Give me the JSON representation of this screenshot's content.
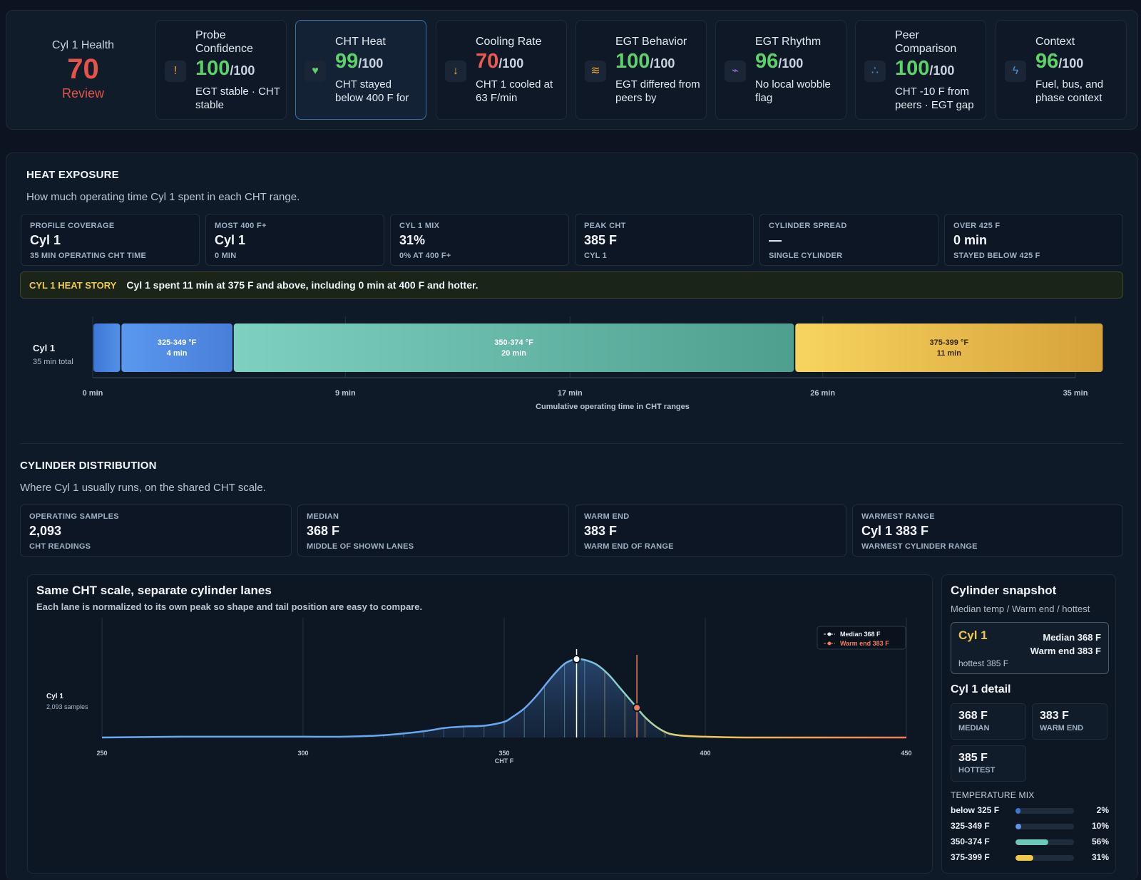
{
  "health": {
    "label": "Cyl 1 Health",
    "score": "70",
    "status": "Review"
  },
  "cards": [
    {
      "title": "Probe Confidence",
      "score": "100",
      "denom": "/100",
      "desc": "EGT stable · CHT stable",
      "icon": "!",
      "icon_name": "warning-icon",
      "icon_color": "#f0a637",
      "score_color": "good"
    },
    {
      "title": "CHT Heat",
      "score": "99",
      "denom": "/100",
      "desc": "CHT stayed below 400 F for",
      "icon": "♥",
      "icon_name": "heart-icon",
      "icon_color": "#5bd26a",
      "score_color": "good"
    },
    {
      "title": "Cooling Rate",
      "score": "70",
      "denom": "/100",
      "desc": "CHT 1 cooled at 63 F/min",
      "icon": "↓",
      "icon_name": "cooling-arrow-icon",
      "icon_color": "#f0a637",
      "score_color": "bad"
    },
    {
      "title": "EGT Behavior",
      "score": "100",
      "denom": "/100",
      "desc": "EGT differed from peers by",
      "icon": "≋",
      "icon_name": "egt-wave-icon",
      "icon_color": "#f0a637",
      "score_color": "good"
    },
    {
      "title": "EGT Rhythm",
      "score": "96",
      "denom": "/100",
      "desc": "No local wobble flag",
      "icon": "⌁",
      "icon_name": "rhythm-icon",
      "icon_color": "#a46ee6",
      "score_color": "good"
    },
    {
      "title": "Peer Comparison",
      "score": "100",
      "denom": "/100",
      "desc": "CHT -10 F from peers · EGT gap",
      "icon": "∴",
      "icon_name": "peer-dots-icon",
      "icon_color": "#4d8fd9",
      "score_color": "good"
    },
    {
      "title": "Context",
      "score": "96",
      "denom": "/100",
      "desc": "Fuel, bus, and phase context",
      "icon": "ϟ",
      "icon_name": "bolt-icon",
      "icon_color": "#4d8fd9",
      "score_color": "good"
    }
  ],
  "heat": {
    "title": "HEAT EXPOSURE",
    "subtitle": "How much operating time Cyl 1 spent in each CHT range.",
    "stats": [
      {
        "k": "PROFILE COVERAGE",
        "v": "Cyl 1",
        "f": "35 MIN OPERATING CHT TIME"
      },
      {
        "k": "MOST 400 F+",
        "v": "Cyl 1",
        "f": "0 MIN"
      },
      {
        "k": "CYL 1 MIX",
        "v": "31%",
        "f": "0% AT 400 F+"
      },
      {
        "k": "PEAK CHT",
        "v": "385 F",
        "f": "CYL 1"
      },
      {
        "k": "CYLINDER SPREAD",
        "v": "—",
        "f": "SINGLE CYLINDER"
      },
      {
        "k": "OVER 425 F",
        "v": "0 min",
        "f": "STAYED BELOW 425 F"
      }
    ],
    "story_tag": "CYL 1 HEAT STORY",
    "story_text": "Cyl 1 spent 11 min at 375 F and above, including 0 min at 400 F and hotter.",
    "bar": {
      "row_label": "Cyl 1",
      "row_sub": "35 min total",
      "total_min": 35,
      "segments": [
        {
          "name": "below 325",
          "minutes": 1,
          "label": "",
          "sublabel": ""
        },
        {
          "name": "325-349",
          "minutes": 4,
          "label": "325-349 °F",
          "sublabel": "4 min"
        },
        {
          "name": "350-374",
          "minutes": 20,
          "label": "350-374 °F",
          "sublabel": "20 min"
        },
        {
          "name": "375-399",
          "minutes": 11,
          "label": "375-399 °F",
          "sublabel": "11 min"
        }
      ],
      "ticks": [
        "0 min",
        "9 min",
        "17 min",
        "26 min",
        "35 min"
      ],
      "xlabel": "Cumulative operating time in CHT ranges"
    }
  },
  "dist": {
    "title": "CYLINDER DISTRIBUTION",
    "subtitle": "Where Cyl 1 usually runs, on the shared CHT scale.",
    "stats": [
      {
        "k": "OPERATING SAMPLES",
        "v": "2,093",
        "f": "CHT READINGS"
      },
      {
        "k": "MEDIAN",
        "v": "368 F",
        "f": "MIDDLE OF SHOWN LANES"
      },
      {
        "k": "WARM END",
        "v": "383 F",
        "f": "WARM END OF RANGE"
      },
      {
        "k": "WARMEST RANGE",
        "v": "Cyl 1 383 F",
        "f": "WARMEST CYLINDER RANGE"
      }
    ]
  },
  "chart": {
    "title": "Same CHT scale, separate cylinder lanes",
    "subtitle": "Each lane is normalized to its own peak so shape and tail position are easy to compare.",
    "lane_label": "Cyl 1",
    "lane_sub": "2,093 samples",
    "legend_median": "Median 368 F",
    "legend_warm": "Warm end 383 F",
    "x_ticks": [
      "250",
      "300",
      "350",
      "400",
      "450"
    ],
    "xlabel": "CHT F"
  },
  "chart_data": {
    "type": "area",
    "title": "Same CHT scale, separate cylinder lanes",
    "xlabel": "CHT F",
    "ylabel": "",
    "xlim": [
      250,
      450
    ],
    "ylim": [
      0,
      1
    ],
    "grid": true,
    "legend": "top-right",
    "series": [
      {
        "name": "Cyl 1",
        "x": [
          250,
          270,
          290,
          300,
          310,
          320,
          330,
          335,
          340,
          345,
          350,
          352,
          355,
          358,
          361,
          363,
          365,
          367,
          368,
          370,
          373,
          376,
          379,
          382,
          385,
          388,
          391,
          395,
          400,
          410,
          430,
          450
        ],
        "y": [
          0,
          0.01,
          0.01,
          0.01,
          0.01,
          0.03,
          0.08,
          0.12,
          0.14,
          0.15,
          0.2,
          0.26,
          0.37,
          0.53,
          0.72,
          0.84,
          0.94,
          0.99,
          1.0,
          0.99,
          0.93,
          0.8,
          0.62,
          0.44,
          0.26,
          0.13,
          0.05,
          0.02,
          0.01,
          0,
          0,
          0
        ]
      }
    ],
    "markers": [
      {
        "name": "Median 368 F",
        "x": 368,
        "y": 1.0
      },
      {
        "name": "Warm end 383 F",
        "x": 383,
        "y": 0.38
      }
    ]
  },
  "snapshot": {
    "title": "Cylinder snapshot",
    "subtitle": "Median temp / Warm end / hottest",
    "cyl": "Cyl 1",
    "median_line": "Median 368 F",
    "warm_line": "Warm end 383 F",
    "hottest_line": "hottest 385 F",
    "detail_title": "Cyl 1 detail",
    "minis": [
      {
        "v": "368 F",
        "k": "MEDIAN"
      },
      {
        "v": "383 F",
        "k": "WARM END"
      },
      {
        "v": "385 F",
        "k": "HOTTEST"
      }
    ],
    "mix_title": "TEMPERATURE MIX",
    "mix": [
      {
        "label": "below 325 F",
        "pct": "2%",
        "fraction": 0.02,
        "color": "#3c77d6"
      },
      {
        "label": "325-349 F",
        "pct": "10%",
        "fraction": 0.1,
        "color": "#5d94ec"
      },
      {
        "label": "350-374 F",
        "pct": "56%",
        "fraction": 0.56,
        "color": "#6cc9b8"
      },
      {
        "label": "375-399 F",
        "pct": "31%",
        "fraction": 0.31,
        "color": "#f0c84a"
      }
    ]
  },
  "colors": {
    "good": "#5bd26a",
    "bad": "#ec5a4e",
    "warm": "#efc94c",
    "median": "#ffffff",
    "warm_end": "#f47b5c",
    "curve": "#6aa7f0"
  }
}
